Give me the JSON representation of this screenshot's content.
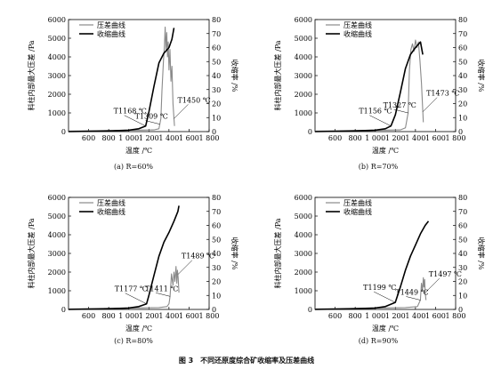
{
  "figure_caption": "图 3　不同还原度综合矿收缩率及压差曲线",
  "legend": {
    "pressure": "压差曲线",
    "shrinkage": "收缩曲线"
  },
  "xlabel": "温度 /℃",
  "ylabel_left": "料柱内部最大压差 /Pa",
  "ylabel_right": "收缩率 /%",
  "colors": {
    "pressure": "#8a8a8a",
    "shrinkage": "#000000",
    "axis": "#000000"
  },
  "chart_data": [
    {
      "type": "line",
      "caption": "(a) R=60%",
      "xlim": [
        400,
        1800
      ],
      "ylim": [
        0,
        6000
      ],
      "y2lim": [
        0,
        80
      ],
      "xticks": [
        600,
        800,
        1000,
        1200,
        1400,
        1600,
        1800
      ],
      "xtick_labels": [
        "600",
        "800",
        "1 000",
        "1 200",
        "1 400",
        "1 600",
        "1 800"
      ],
      "yticks": [
        0,
        1000,
        2000,
        3000,
        4000,
        5000,
        6000
      ],
      "y2ticks": [
        0,
        10,
        20,
        30,
        40,
        50,
        60,
        70,
        80
      ],
      "series": [
        {
          "name": "压差曲线",
          "axis": "left",
          "x": [
            400,
            900,
            1250,
            1300,
            1320,
            1330,
            1345,
            1355,
            1362,
            1370,
            1378,
            1385,
            1392,
            1400,
            1410,
            1420,
            1430,
            1440,
            1450,
            1455
          ],
          "y": [
            30,
            60,
            90,
            150,
            700,
            2200,
            3800,
            4600,
            5600,
            4400,
            5300,
            4000,
            4800,
            3300,
            4400,
            2700,
            3500,
            1500,
            700,
            300
          ]
        },
        {
          "name": "收缩曲线",
          "axis": "right",
          "x": [
            400,
            800,
            1000,
            1100,
            1168,
            1200,
            1250,
            1300,
            1350,
            1400,
            1430,
            1450
          ],
          "y": [
            0,
            0.5,
            1,
            2,
            4,
            14,
            32,
            49,
            56,
            60,
            66,
            74
          ]
        }
      ],
      "annotations": [
        "T1168 ℃",
        "T1309 ℃",
        "T1450 ℃"
      ]
    },
    {
      "type": "line",
      "caption": "(b) R=70%",
      "xlim": [
        400,
        1800
      ],
      "ylim": [
        0,
        6000
      ],
      "y2lim": [
        0,
        80
      ],
      "xticks": [
        600,
        800,
        1000,
        1200,
        1400,
        1600,
        1800
      ],
      "xtick_labels": [
        "600",
        "800",
        "1 000",
        "1 200",
        "1 400",
        "1 600",
        "1 800"
      ],
      "yticks": [
        0,
        1000,
        2000,
        3000,
        4000,
        5000,
        6000
      ],
      "y2ticks": [
        0,
        10,
        20,
        30,
        40,
        50,
        60,
        70,
        80
      ],
      "series": [
        {
          "name": "压差曲线",
          "axis": "left",
          "x": [
            400,
            900,
            1250,
            1300,
            1327,
            1340,
            1355,
            1370,
            1385,
            1400,
            1415,
            1430,
            1445,
            1460,
            1470,
            1478
          ],
          "y": [
            30,
            60,
            90,
            200,
            1000,
            3300,
            4400,
            4700,
            4300,
            4900,
            4500,
            4800,
            3800,
            2600,
            1400,
            500
          ]
        },
        {
          "name": "收缩曲线",
          "axis": "right",
          "x": [
            400,
            800,
            1000,
            1100,
            1156,
            1200,
            1250,
            1300,
            1350,
            1400,
            1450,
            1473
          ],
          "y": [
            0,
            0.5,
            1,
            2,
            4,
            12,
            28,
            45,
            55,
            60,
            64,
            55
          ]
        }
      ],
      "annotations": [
        "T1156 ℃",
        "T1327 ℃",
        "T1473 ℃"
      ]
    },
    {
      "type": "line",
      "caption": "(c) R=80%",
      "xlim": [
        400,
        1800
      ],
      "ylim": [
        0,
        6000
      ],
      "y2lim": [
        0,
        80
      ],
      "xticks": [
        600,
        800,
        1000,
        1200,
        1400,
        1600,
        1800
      ],
      "xtick_labels": [
        "600",
        "800",
        "1 000",
        "1 200",
        "1 400",
        "1 600",
        "1 800"
      ],
      "yticks": [
        0,
        1000,
        2000,
        3000,
        4000,
        5000,
        6000
      ],
      "y2ticks": [
        0,
        10,
        20,
        30,
        40,
        50,
        60,
        70,
        80
      ],
      "series": [
        {
          "name": "压差曲线",
          "axis": "left",
          "x": [
            400,
            900,
            1300,
            1380,
            1400,
            1411,
            1425,
            1440,
            1450,
            1460,
            1470,
            1478,
            1485,
            1492,
            1500
          ],
          "y": [
            30,
            60,
            100,
            150,
            300,
            700,
            1900,
            1300,
            2000,
            1500,
            2300,
            1400,
            2100,
            1700,
            900
          ]
        },
        {
          "name": "收缩曲线",
          "axis": "right",
          "x": [
            400,
            800,
            1000,
            1100,
            1177,
            1200,
            1250,
            1300,
            1350,
            1400,
            1450,
            1489,
            1500
          ],
          "y": [
            0,
            0.5,
            1,
            2,
            4,
            10,
            24,
            38,
            48,
            55,
            63,
            70,
            74
          ]
        }
      ],
      "annotations": [
        "T1177 ℃",
        "T1411 ℃",
        "T1489 ℃"
      ]
    },
    {
      "type": "line",
      "caption": "(d) R=90%",
      "xlim": [
        400,
        1800
      ],
      "ylim": [
        0,
        6000
      ],
      "y2lim": [
        0,
        80
      ],
      "xticks": [
        600,
        800,
        1000,
        1200,
        1400,
        1600,
        1800
      ],
      "xtick_labels": [
        "600",
        "800",
        "1 000",
        "1 200",
        "1 400",
        "1 600",
        "1 800"
      ],
      "yticks": [
        0,
        1000,
        2000,
        3000,
        4000,
        5000,
        6000
      ],
      "y2ticks": [
        0,
        10,
        20,
        30,
        40,
        50,
        60,
        70,
        80
      ],
      "series": [
        {
          "name": "压差曲线",
          "axis": "left",
          "x": [
            400,
            900,
            1300,
            1420,
            1449,
            1460,
            1470,
            1478,
            1485,
            1492,
            1497,
            1505
          ],
          "y": [
            30,
            60,
            100,
            150,
            500,
            1400,
            1000,
            1700,
            1200,
            1600,
            900,
            500
          ]
        },
        {
          "name": "收缩曲线",
          "axis": "right",
          "x": [
            400,
            800,
            1000,
            1100,
            1199,
            1250,
            1300,
            1350,
            1400,
            1450,
            1497,
            1530
          ],
          "y": [
            0,
            0.5,
            1,
            2,
            5,
            16,
            28,
            38,
            46,
            54,
            60,
            63
          ]
        }
      ],
      "annotations": [
        "T1199 ℃",
        "T1449 ℃",
        "T1497 ℃"
      ]
    }
  ]
}
